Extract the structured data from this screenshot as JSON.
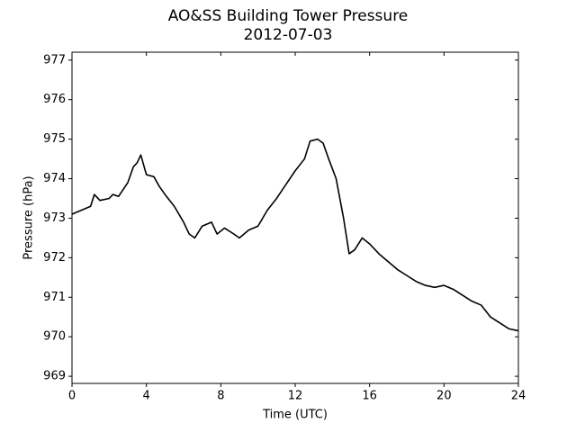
{
  "chart_data": {
    "type": "line",
    "title": "AO&SS Building Tower Pressure",
    "subtitle": "2012-07-03",
    "x_label": "Time (UTC)",
    "y_label": "Pressure (hPa)",
    "x": [
      0,
      0.5,
      1,
      1.2,
      1.5,
      2,
      2.2,
      2.5,
      3,
      3.3,
      3.5,
      3.7,
      4,
      4.4,
      4.7,
      5,
      5.5,
      6,
      6.3,
      6.6,
      7,
      7.5,
      7.8,
      8.2,
      8.7,
      9,
      9.5,
      10,
      10.5,
      11,
      11.5,
      12,
      12.5,
      12.8,
      13.2,
      13.5,
      13.8,
      14.2,
      14.6,
      14.9,
      15.2,
      15.6,
      16,
      16.5,
      17,
      17.5,
      18,
      18.5,
      19,
      19.5,
      20,
      20.5,
      21,
      21.5,
      22,
      22.5,
      23,
      23.5,
      24
    ],
    "series": [
      {
        "name": "Pressure",
        "color": "#000000",
        "values": [
          973.1,
          973.2,
          973.3,
          973.6,
          973.45,
          973.5,
          973.6,
          973.55,
          973.9,
          974.3,
          974.4,
          974.6,
          974.1,
          974.05,
          973.8,
          973.6,
          973.3,
          972.9,
          972.6,
          972.5,
          972.8,
          972.9,
          972.6,
          972.75,
          972.6,
          972.5,
          972.7,
          972.8,
          973.2,
          973.5,
          973.85,
          974.2,
          974.5,
          974.95,
          975.0,
          974.9,
          974.5,
          974.0,
          973.0,
          972.1,
          972.2,
          972.5,
          972.35,
          972.1,
          971.9,
          971.7,
          971.55,
          971.4,
          971.3,
          971.25,
          971.3,
          971.2,
          971.05,
          970.9,
          970.8,
          970.5,
          970.35,
          970.2,
          970.15
        ]
      }
    ],
    "xlim": [
      0,
      24
    ],
    "xticks": [
      0,
      4,
      8,
      12,
      16,
      20,
      24
    ],
    "ylim": [
      968.82,
      977.2
    ],
    "yticks": [
      969,
      970,
      971,
      972,
      973,
      974,
      975,
      976,
      977
    ],
    "grid": false
  }
}
